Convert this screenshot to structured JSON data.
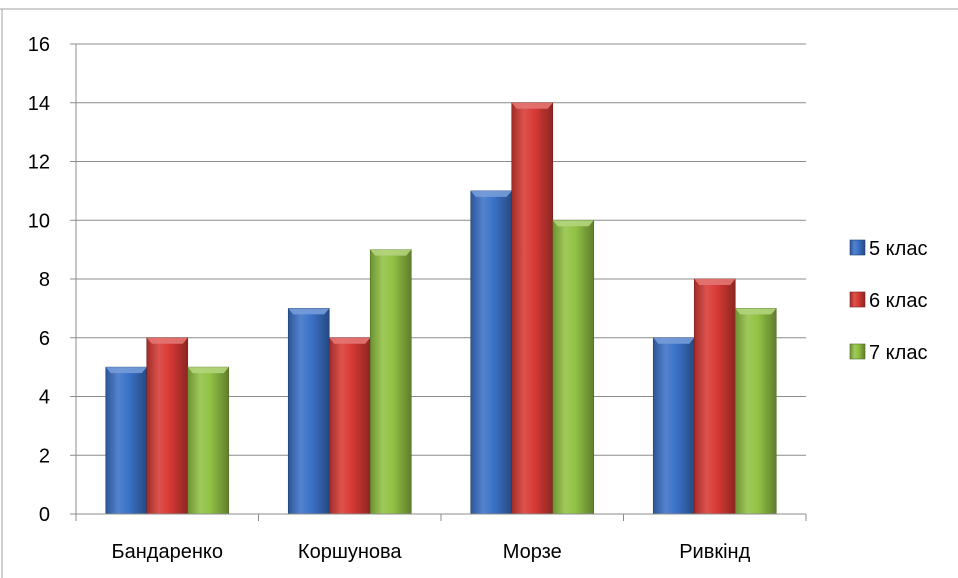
{
  "chart_data": {
    "type": "bar",
    "title": "",
    "xlabel": "",
    "ylabel": "",
    "categories": [
      "Бандаренко",
      "Коршунова",
      "Морзе",
      "Ривкінд"
    ],
    "series": [
      {
        "name": "5 клас",
        "values": [
          5,
          7,
          11,
          6
        ],
        "color": "#3b72c8"
      },
      {
        "name": "6 клас",
        "values": [
          6,
          6,
          14,
          8
        ],
        "color": "#d83a35"
      },
      {
        "name": "7 клас",
        "values": [
          5,
          9,
          10,
          7
        ],
        "color": "#92c244"
      }
    ],
    "ylim": [
      0,
      16
    ],
    "yticks": [
      0,
      2,
      4,
      6,
      8,
      10,
      12,
      14,
      16
    ],
    "grid": true,
    "legend": "right"
  }
}
